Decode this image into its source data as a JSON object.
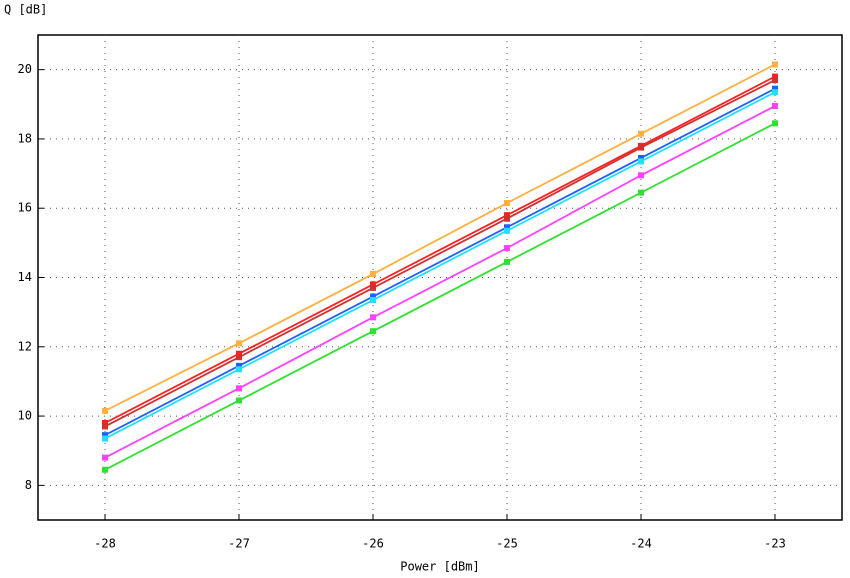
{
  "chart_data": {
    "type": "line",
    "x_label": "Power [dBm]",
    "y_label": "Q [dB]",
    "x": [
      -28,
      -27,
      -26,
      -25,
      -24,
      -23
    ],
    "series": [
      {
        "color": "#ffb040",
        "values": [
          10.15,
          12.1,
          14.1,
          16.15,
          18.15,
          20.15
        ]
      },
      {
        "color": "#ff2020",
        "values": [
          9.8,
          11.8,
          13.8,
          15.8,
          17.8,
          19.8
        ]
      },
      {
        "color": "#d03030",
        "values": [
          9.7,
          11.7,
          13.7,
          15.7,
          17.75,
          19.7
        ]
      },
      {
        "color": "#2060ff",
        "values": [
          9.45,
          11.45,
          13.45,
          15.45,
          17.45,
          19.45
        ]
      },
      {
        "color": "#20e0ff",
        "values": [
          9.35,
          11.35,
          13.35,
          15.35,
          17.35,
          19.35
        ]
      },
      {
        "color": "#ff40ff",
        "values": [
          8.8,
          10.8,
          12.85,
          14.85,
          16.95,
          18.95
        ]
      },
      {
        "color": "#30e030",
        "values": [
          8.45,
          10.45,
          12.45,
          14.45,
          16.45,
          18.45
        ]
      }
    ],
    "xlim": [
      -28.5,
      -22.5
    ],
    "ylim": [
      7,
      21
    ],
    "xticks": [
      -28,
      -27,
      -26,
      -25,
      -24,
      -23
    ],
    "yticks": [
      8,
      10,
      12,
      14,
      16,
      18,
      20
    ],
    "grid": true
  }
}
